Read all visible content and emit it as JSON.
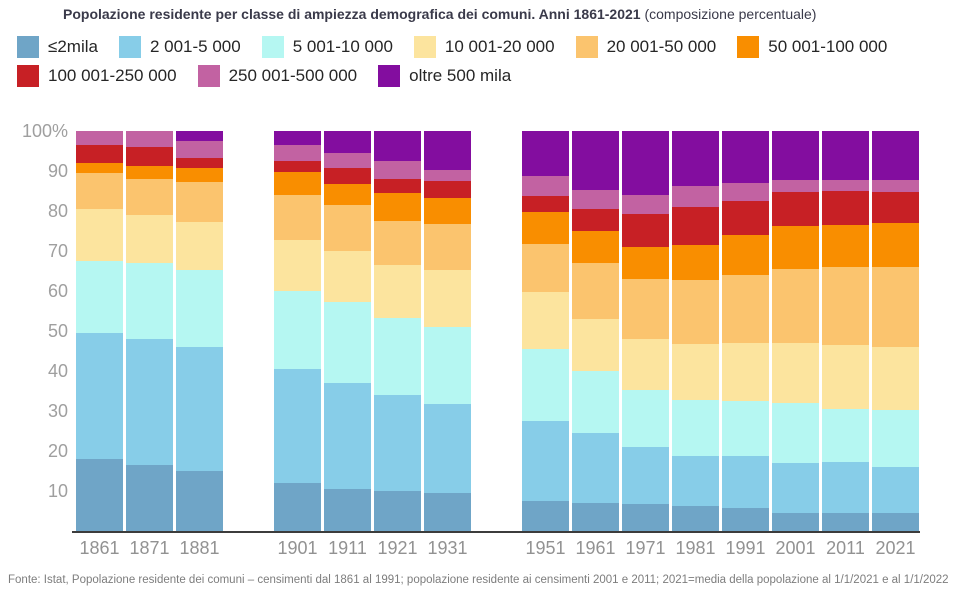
{
  "title": {
    "main": "Popolazione residente per classe di ampiezza demografica dei comuni. Anni 1861-2021",
    "suffix": " (composizione percentuale)"
  },
  "legend": [
    {
      "label": "≤2mila",
      "color": "#6fa5c7"
    },
    {
      "label": "2 001-5 000",
      "color": "#87cde8"
    },
    {
      "label": "5 001-10 000",
      "color": "#b5f7f2"
    },
    {
      "label": "10 001-20 000",
      "color": "#fce49e"
    },
    {
      "label": "20 001-50 000",
      "color": "#fbc46e"
    },
    {
      "label": "50 001-100 000",
      "color": "#f98e00"
    },
    {
      "label": "100 001-250 000",
      "color": "#c72025"
    },
    {
      "label": "250 001-500 000",
      "color": "#c262a2"
    },
    {
      "label": "oltre 500 mila",
      "color": "#830d9f"
    }
  ],
  "chart_data": {
    "type": "bar",
    "stacked": true,
    "orientation": "vertical",
    "title": "Popolazione residente per classe di ampiezza demografica dei comuni. Anni 1861-2021 (composizione percentuale)",
    "xlabel": "",
    "ylabel": "",
    "ylim": [
      0,
      100
    ],
    "grid": false,
    "legend_position": "top",
    "y_ticks": [
      "100%",
      "90",
      "80",
      "70",
      "60",
      "50",
      "40",
      "30",
      "20",
      "10"
    ],
    "categories": [
      "1861",
      "1871",
      "1881",
      "1901",
      "1911",
      "1921",
      "1931",
      "1951",
      "1961",
      "1971",
      "1981",
      "1991",
      "2001",
      "2011",
      "2021"
    ],
    "group_sizes": [
      3,
      4,
      8
    ],
    "series": [
      {
        "name": "≤2mila",
        "color": "#6fa5c7",
        "values": [
          18,
          16.5,
          15,
          12,
          10.5,
          10,
          9.5,
          7.5,
          7,
          6.7,
          6.2,
          5.7,
          4.5,
          4.5,
          4.5
        ]
      },
      {
        "name": "2 001-5 000",
        "color": "#87cde8",
        "values": [
          31.5,
          31.5,
          31,
          28.6,
          26.5,
          24,
          22.2,
          20,
          17.5,
          14.4,
          12.5,
          13,
          12.5,
          12.7,
          11.5
        ]
      },
      {
        "name": "5 001-10 000",
        "color": "#b5f7f2",
        "values": [
          18,
          19,
          19.3,
          19.4,
          20.2,
          19.2,
          19.3,
          18,
          15.5,
          14.1,
          14,
          13.8,
          15,
          13.3,
          14.2
        ]
      },
      {
        "name": "10 001-20 000",
        "color": "#fce49e",
        "values": [
          13,
          12,
          11.9,
          12.8,
          12.8,
          13.2,
          14.2,
          14.25,
          13,
          12.8,
          14.1,
          14.5,
          15,
          16,
          15.9
        ]
      },
      {
        "name": "20 001-50 000",
        "color": "#fbc46e",
        "values": [
          9,
          9,
          10,
          11.3,
          11.4,
          11.1,
          11.5,
          12,
          14,
          15,
          15.9,
          17,
          18.5,
          19.4,
          20
        ]
      },
      {
        "name": "50 001-100 000",
        "color": "#f98e00",
        "values": [
          2.5,
          3.2,
          3.5,
          5.6,
          5.3,
          7,
          6.6,
          8,
          8,
          8,
          8.7,
          10,
          10.8,
          10.6,
          10.8
        ]
      },
      {
        "name": "100 001-250 000",
        "color": "#c72025",
        "values": [
          4.5,
          4.7,
          2.5,
          2.8,
          4.1,
          3.6,
          4.2,
          4,
          5.5,
          8.3,
          9.6,
          8.5,
          8.4,
          8.5,
          7.9
        ]
      },
      {
        "name": "250 001-500 000",
        "color": "#c262a2",
        "values": [
          3.5,
          4.1,
          4.4,
          4.1,
          3.7,
          4.4,
          2.8,
          5,
          4.8,
          4.6,
          5.2,
          4.5,
          3.1,
          2.7,
          2.9
        ]
      },
      {
        "name": "oltre 500 mila",
        "color": "#830d9f",
        "values": [
          0,
          0,
          2.4,
          3.4,
          5.5,
          7.5,
          9.7,
          11.25,
          14.7,
          16.1,
          13.8,
          13,
          12.2,
          12.3,
          12.3
        ]
      }
    ]
  },
  "footer": "Fonte: Istat, Popolazione residente dei comuni – censimenti dal 1861 al 1991; popolazione residente ai censimenti 2001 e 2011; 2021=media della popolazione al 1/1/2021 e al 1/1/2022"
}
